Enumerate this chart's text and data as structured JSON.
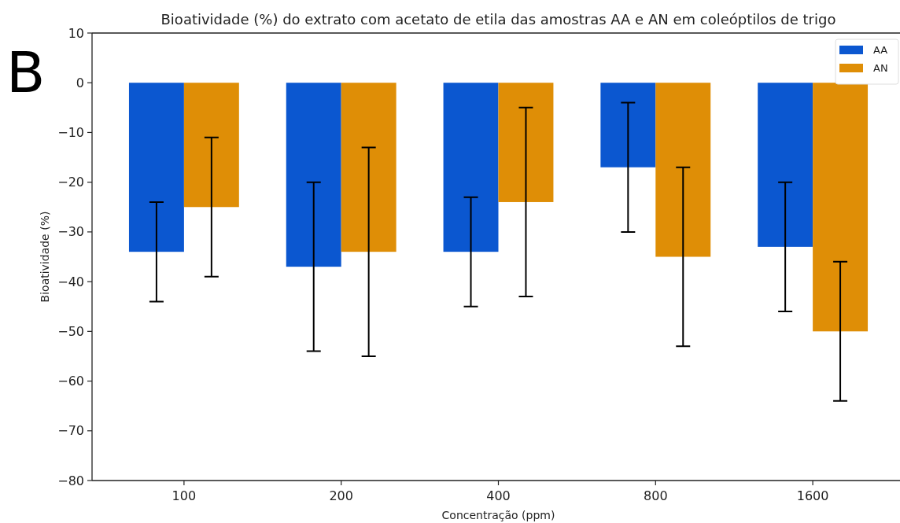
{
  "chart_data": {
    "type": "bar",
    "title": "Bioatividade (%) do extrato com acetato de etila das amostras AA e AN em coleóptilos de trigo",
    "xlabel": "Concentração (ppm)",
    "ylabel": "Bioatividade (%)",
    "annotations": [
      "B"
    ],
    "categories": [
      "100",
      "200",
      "400",
      "800",
      "1600"
    ],
    "series": [
      {
        "name": "AA",
        "color": "#0b57d0",
        "values": [
          -34,
          -37,
          -34,
          -17,
          -33
        ],
        "errors": [
          10,
          17,
          11,
          13,
          13
        ]
      },
      {
        "name": "AN",
        "color": "#df8e06",
        "values": [
          -25,
          -34,
          -24,
          -35,
          -50
        ],
        "errors": [
          14,
          21,
          19,
          18,
          14
        ]
      }
    ],
    "ylim": [
      -80,
      10
    ],
    "yticks": [
      10,
      0,
      -10,
      -20,
      -30,
      -40,
      -50,
      -60,
      -70,
      -80
    ],
    "legend": "top right"
  }
}
